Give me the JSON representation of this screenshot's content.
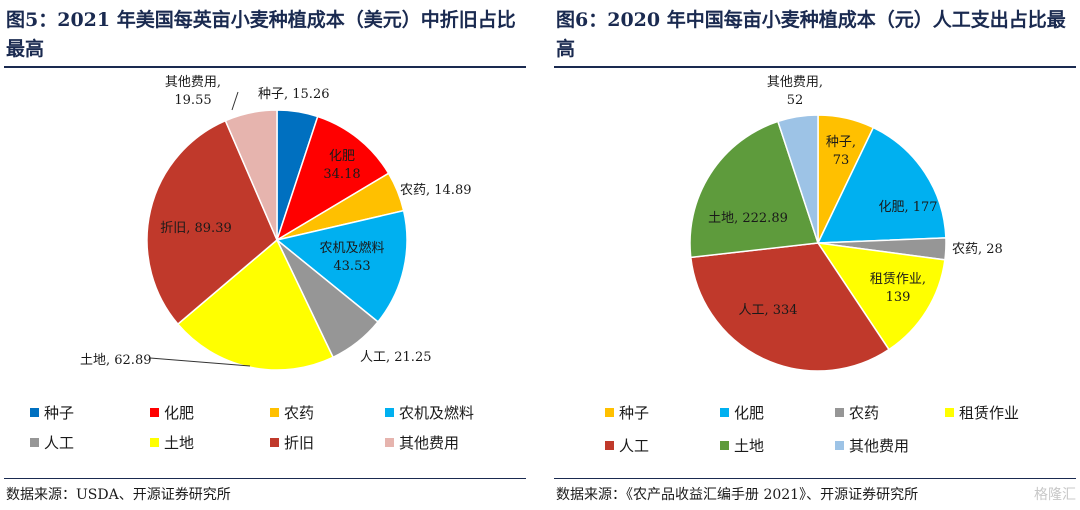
{
  "left": {
    "title": "图5：2021 年美国每英亩小麦种植成本（美元）中折旧占比最高",
    "source": "数据来源：USDA、开源证券研究所",
    "chart_data": {
      "type": "pie",
      "categories": [
        "种子",
        "化肥",
        "农药",
        "农机及燃料",
        "人工",
        "土地",
        "折旧",
        "其他费用"
      ],
      "values": [
        15.26,
        34.18,
        14.89,
        43.53,
        21.25,
        62.89,
        89.39,
        19.55
      ],
      "value_labels": [
        "15.26",
        "34.18",
        "14.89",
        "43.53",
        "21.25",
        "62.89",
        "89.39",
        "19.55"
      ],
      "colors": [
        "#0070C0",
        "#FF0000",
        "#FFC000",
        "#00B0F0",
        "#969696",
        "#FFFF00",
        "#C0392B",
        "#E6B4AE"
      ],
      "legend": "bottom"
    }
  },
  "right": {
    "title": "图6：2020 年中国每亩小麦种植成本（元）人工支出占比最高",
    "source": "数据来源：《农产品收益汇编手册 2021》、开源证券研究所",
    "chart_data": {
      "type": "pie",
      "categories": [
        "种子",
        "化肥",
        "农药",
        "租赁作业",
        "人工",
        "土地",
        "其他费用"
      ],
      "values": [
        73,
        177,
        28,
        139,
        334,
        222.89,
        52
      ],
      "value_labels": [
        "73",
        "177",
        "28",
        "139",
        "334",
        "222.89",
        "52"
      ],
      "colors": [
        "#FFC000",
        "#00B0F0",
        "#969696",
        "#FFFF00",
        "#C0392B",
        "#5E9B3C",
        "#9DC3E6"
      ],
      "legend": "bottom"
    }
  },
  "watermark": "格隆汇"
}
